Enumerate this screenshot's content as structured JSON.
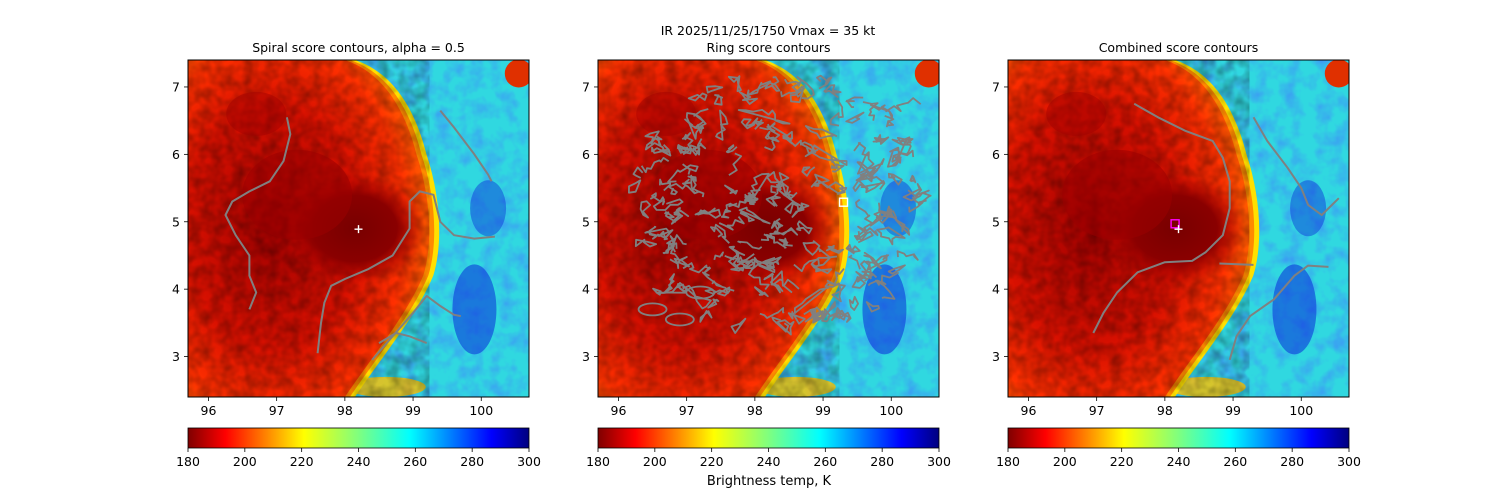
{
  "figure": {
    "suptitle_line": "IR  2025/11/25/1750    Vmax = 35 kt",
    "cbar_label": "Brightness temp, K"
  },
  "palette": {
    "tc_core": "#7a0000",
    "tc_cloud": "#e01800",
    "clear_cyan": "#30d8e0",
    "clear_blue": "#1a78ff",
    "deep_blue": "#0a2cd8",
    "contour_gray": "#808080"
  },
  "chart_data": [
    {
      "type": "heatmap",
      "title": "Spiral score contours, alpha =  0.5",
      "xlim": [
        95.7,
        100.7
      ],
      "ylim": [
        2.4,
        7.4
      ],
      "xticks": [
        96,
        97,
        98,
        99,
        100
      ],
      "yticks": [
        3,
        4,
        5,
        6,
        7
      ],
      "colorbar": {
        "ticks": [
          180,
          200,
          220,
          240,
          260,
          280,
          300
        ],
        "range": [
          180,
          300
        ],
        "colormap": "jet_r"
      },
      "markers": [
        {
          "symbol": "+",
          "color": "white",
          "x": 98.2,
          "y": 4.89
        }
      ],
      "contours": [
        [
          [
            97.15,
            6.55
          ],
          [
            97.2,
            6.3
          ],
          [
            97.1,
            5.9
          ],
          [
            96.9,
            5.6
          ],
          [
            96.6,
            5.45
          ],
          [
            96.35,
            5.3
          ],
          [
            96.25,
            5.1
          ],
          [
            96.4,
            4.8
          ],
          [
            96.6,
            4.5
          ],
          [
            96.6,
            4.2
          ],
          [
            96.7,
            3.95
          ],
          [
            96.6,
            3.7
          ]
        ],
        [
          [
            97.6,
            3.05
          ],
          [
            97.65,
            3.5
          ],
          [
            97.7,
            3.8
          ],
          [
            97.8,
            4.05
          ],
          [
            98.0,
            4.15
          ],
          [
            98.35,
            4.3
          ],
          [
            98.7,
            4.5
          ],
          [
            98.95,
            4.9
          ],
          [
            98.95,
            5.3
          ],
          [
            99.1,
            5.45
          ],
          [
            99.3,
            5.4
          ],
          [
            99.4,
            5.0
          ],
          [
            99.6,
            4.8
          ],
          [
            99.9,
            4.75
          ],
          [
            100.2,
            4.78
          ]
        ],
        [
          [
            98.4,
            2.95
          ],
          [
            98.7,
            3.3
          ],
          [
            99.0,
            3.65
          ],
          [
            99.2,
            3.9
          ],
          [
            99.4,
            3.75
          ],
          [
            99.6,
            3.62
          ],
          [
            99.7,
            3.6
          ]
        ],
        [
          [
            98.5,
            3.2
          ],
          [
            98.75,
            3.35
          ],
          [
            98.95,
            3.3
          ],
          [
            99.2,
            3.2
          ]
        ],
        [
          [
            99.4,
            6.65
          ],
          [
            99.6,
            6.4
          ],
          [
            99.9,
            6.0
          ],
          [
            100.1,
            5.7
          ],
          [
            100.15,
            5.6
          ]
        ]
      ]
    },
    {
      "type": "heatmap",
      "title": "Ring score contours",
      "xlim": [
        95.7,
        100.7
      ],
      "ylim": [
        2.4,
        7.4
      ],
      "xticks": [
        96,
        97,
        98,
        99,
        100
      ],
      "yticks": [
        3,
        4,
        5,
        6,
        7
      ],
      "colorbar": {
        "ticks": [
          180,
          200,
          220,
          240,
          260,
          280,
          300
        ],
        "range": [
          180,
          300
        ],
        "colormap": "jet_r"
      },
      "markers": [
        {
          "symbol": "square",
          "color": "white",
          "x": 99.3,
          "y": 5.29
        }
      ],
      "contour_region": "dense irregular contours between 96.2–100.5 E and 3.3–7.1 N"
    },
    {
      "type": "heatmap",
      "title": "Combined score contours",
      "xlim": [
        95.7,
        100.7
      ],
      "ylim": [
        2.4,
        7.4
      ],
      "xticks": [
        96,
        97,
        98,
        99,
        100
      ],
      "yticks": [
        3,
        4,
        5,
        6,
        7
      ],
      "colorbar": {
        "ticks": [
          180,
          200,
          220,
          240,
          260,
          280,
          300
        ],
        "range": [
          180,
          300
        ],
        "colormap": "jet_r"
      },
      "markers": [
        {
          "symbol": "square",
          "color": "magenta",
          "x": 98.15,
          "y": 4.97
        },
        {
          "symbol": "+",
          "color": "white",
          "x": 98.2,
          "y": 4.89
        }
      ],
      "contours": [
        [
          [
            97.55,
            6.75
          ],
          [
            97.9,
            6.55
          ],
          [
            98.3,
            6.35
          ],
          [
            98.7,
            6.2
          ],
          [
            98.85,
            5.95
          ],
          [
            98.95,
            5.6
          ],
          [
            98.95,
            5.2
          ],
          [
            98.85,
            4.8
          ],
          [
            98.6,
            4.55
          ],
          [
            98.4,
            4.42
          ],
          [
            98.0,
            4.4
          ],
          [
            97.6,
            4.25
          ],
          [
            97.3,
            3.95
          ],
          [
            97.1,
            3.65
          ],
          [
            96.95,
            3.35
          ]
        ],
        [
          [
            98.95,
            2.95
          ],
          [
            99.05,
            3.3
          ],
          [
            99.25,
            3.6
          ],
          [
            99.6,
            3.85
          ],
          [
            99.9,
            4.2
          ],
          [
            100.1,
            4.35
          ],
          [
            100.4,
            4.33
          ]
        ],
        [
          [
            98.8,
            4.38
          ],
          [
            99.3,
            4.36
          ]
        ],
        [
          [
            99.3,
            6.55
          ],
          [
            99.5,
            6.2
          ],
          [
            99.8,
            5.8
          ],
          [
            100.0,
            5.5
          ],
          [
            100.1,
            5.25
          ],
          [
            100.3,
            5.1
          ],
          [
            100.45,
            5.25
          ],
          [
            100.55,
            5.35
          ]
        ]
      ]
    }
  ]
}
